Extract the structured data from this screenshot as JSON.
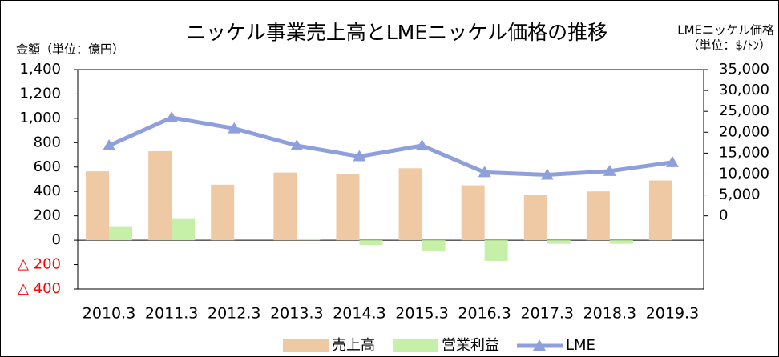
{
  "chart_data": {
    "type": "bar_line",
    "title": "ニッケル事業売上高とLMEニッケル価格の推移",
    "ylabel": "金額（単位：億円）",
    "y2label": [
      "LMEニッケル価格",
      "（単位：$/ﾄﾝ）"
    ],
    "categories": [
      "2010.3",
      "2011.3",
      "2012.3",
      "2013.3",
      "2014.3",
      "2015.3",
      "2016.3",
      "2017.3",
      "2018.3",
      "2019.3"
    ],
    "series": [
      {
        "name": "売上高",
        "type": "bar",
        "color": "#efc9a3",
        "values": [
          565,
          730,
          455,
          555,
          540,
          590,
          450,
          370,
          400,
          490
        ]
      },
      {
        "name": "営業利益",
        "type": "bar",
        "color": "#c6f0a8",
        "values": [
          115,
          180,
          0,
          15,
          -40,
          -85,
          -170,
          -30,
          -30,
          0
        ]
      },
      {
        "name": "LME",
        "type": "line",
        "axis": "y2",
        "color": "#8f9fdc",
        "values": [
          16800,
          23500,
          20900,
          16800,
          14200,
          16800,
          10400,
          9800,
          10700,
          12800
        ]
      }
    ],
    "ylim": [
      -400,
      1400
    ],
    "yticks": [
      {
        "value": -400,
        "label": "△ 400"
      },
      {
        "value": -200,
        "label": "△ 200"
      },
      0,
      {
        "value": 200,
        "label": "200"
      },
      {
        "value": 400,
        "label": "400"
      },
      {
        "value": 600,
        "label": "600"
      },
      {
        "value": 800,
        "label": "800"
      },
      {
        "value": 1000,
        "label": "1,000"
      },
      {
        "value": 1200,
        "label": "1,200"
      },
      {
        "value": 1400,
        "label": "1,400"
      }
    ],
    "y2lim": [
      -17500,
      35000
    ],
    "y2ticks": [
      0,
      {
        "value": 5000,
        "label": "5,000"
      },
      {
        "value": 10000,
        "label": "10,000"
      },
      {
        "value": 15000,
        "label": "15,000"
      },
      {
        "value": 20000,
        "label": "20,000"
      },
      {
        "value": 25000,
        "label": "25,000"
      },
      {
        "value": 30000,
        "label": "30,000"
      },
      {
        "value": 35000,
        "label": "35,000"
      }
    ],
    "negative_tick_color": "#ff0000",
    "legend": "bottom"
  }
}
